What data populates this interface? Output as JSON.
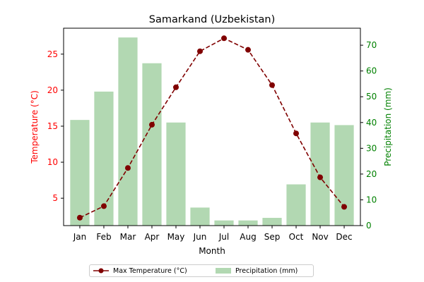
{
  "chart_data": {
    "type": "bar",
    "title": "Samarkand (Uzbekistan)",
    "xlabel": "Month",
    "categories": [
      "Jan",
      "Feb",
      "Mar",
      "Apr",
      "May",
      "Jun",
      "Jul",
      "Aug",
      "Sep",
      "Oct",
      "Nov",
      "Dec"
    ],
    "series": [
      {
        "name": "Max Temperature (°C)",
        "type": "line",
        "axis": "left",
        "values": [
          2.3,
          3.9,
          9.2,
          15.2,
          20.4,
          25.4,
          27.2,
          25.6,
          20.7,
          14.0,
          7.9,
          3.8
        ]
      },
      {
        "name": "Precipitation (mm)",
        "type": "bar",
        "axis": "right",
        "values": [
          41,
          52,
          73,
          63,
          40,
          7,
          2,
          2,
          3,
          16,
          40,
          39
        ]
      }
    ],
    "left_axis": {
      "label": "Temperature (°C)",
      "ylim": [
        1.2,
        28.6
      ],
      "ticks": [
        5,
        10,
        15,
        20,
        25
      ],
      "color": "#ff0000"
    },
    "right_axis": {
      "label": "Precipitation (mm)",
      "ylim": [
        0,
        76.6
      ],
      "ticks": [
        0,
        10,
        20,
        30,
        40,
        50,
        60,
        70
      ],
      "color": "#008000"
    },
    "colors": {
      "line": "#800000",
      "bar": "#b2d8b2"
    },
    "grid": false,
    "legend_position": "bottom-center"
  }
}
